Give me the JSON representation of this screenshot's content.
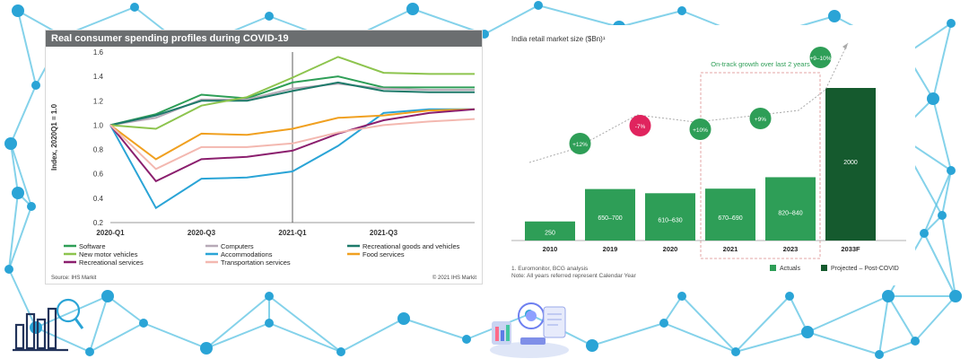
{
  "left_chart": {
    "chart_data": {
      "type": "line",
      "title": "Real consumer spending profiles during COVID-19",
      "ylabel": "Index, 2020Q1 = 1.0",
      "ylim": [
        0.2,
        1.6
      ],
      "yticks": [
        "0.2",
        "0.4",
        "0.6",
        "0.8",
        "1.0",
        "1.2",
        "1.4",
        "1.6"
      ],
      "x": [
        "2020-Q1",
        "2020-Q2",
        "2020-Q3",
        "2020-Q4",
        "2021-Q1",
        "2021-Q2",
        "2021-Q3",
        "2021-Q4",
        "2022-Q1"
      ],
      "xtick_labels": [
        "2020-Q1",
        "2020-Q3",
        "2021-Q1",
        "2021-Q3"
      ],
      "series": [
        {
          "name": "Software",
          "color": "#2e9e57",
          "values": [
            1.0,
            1.09,
            1.25,
            1.22,
            1.35,
            1.4,
            1.31,
            1.31,
            1.31
          ]
        },
        {
          "name": "Computers",
          "color": "#b7a9b7",
          "values": [
            1.0,
            1.06,
            1.21,
            1.21,
            1.3,
            1.34,
            1.3,
            1.29,
            1.29
          ]
        },
        {
          "name": "Recreational goods and vehicles",
          "color": "#1d7a6a",
          "values": [
            1.0,
            1.08,
            1.2,
            1.2,
            1.28,
            1.35,
            1.28,
            1.27,
            1.27
          ]
        },
        {
          "name": "New motor vehicles",
          "color": "#8dc44e",
          "values": [
            1.0,
            0.97,
            1.16,
            1.23,
            1.39,
            1.56,
            1.43,
            1.42,
            1.42
          ]
        },
        {
          "name": "Accommodations",
          "color": "#2aa4d6",
          "values": [
            1.0,
            0.32,
            0.56,
            0.57,
            0.62,
            0.83,
            1.1,
            1.13,
            1.13
          ]
        },
        {
          "name": "Food services",
          "color": "#f0a020",
          "values": [
            1.0,
            0.72,
            0.93,
            0.92,
            0.97,
            1.06,
            1.08,
            1.12,
            1.13
          ]
        },
        {
          "name": "Recreational services",
          "color": "#8b1f6e",
          "values": [
            1.0,
            0.54,
            0.72,
            0.74,
            0.79,
            0.93,
            1.04,
            1.1,
            1.13
          ]
        },
        {
          "name": "Transportation services",
          "color": "#f3b8b0",
          "values": [
            1.0,
            0.64,
            0.82,
            0.82,
            0.85,
            0.94,
            1.0,
            1.03,
            1.05
          ]
        }
      ],
      "vline_at": "2021-Q1",
      "grid": false,
      "legend_position": "bottom"
    },
    "source": "Source: IHS Markit",
    "copyright": "© 2021  IHS Markit"
  },
  "right_chart": {
    "chart_data": {
      "type": "bar",
      "title": "India retail market size ($Bn)¹",
      "categories": [
        "2010",
        "2019",
        "2020",
        "2021",
        "2023",
        "2033F"
      ],
      "values": [
        250,
        675,
        620,
        680,
        830,
        2000
      ],
      "bar_labels": [
        "250",
        "650–700",
        "610–630",
        "670–690",
        "820–840",
        "2000"
      ],
      "growth_bubbles": [
        "+12%",
        "-7%",
        "+10%",
        "+9%",
        "+9–10%"
      ],
      "growth_colors": [
        "#2e9e57",
        "#e0245e",
        "#2e9e57",
        "#2e9e57",
        "#2e9e57"
      ],
      "annotation": "On-track growth over last 2 years",
      "legend": [
        "Actuals",
        "Projected – Post-COVID"
      ],
      "colors": {
        "actuals": "#2e9e57",
        "projected": "#155a2e"
      },
      "grid": false,
      "legend_position": "bottom-right"
    },
    "notes": [
      "1. Euromonitor, BCG analysis",
      "Note: All years referred represent Calendar Year"
    ]
  }
}
